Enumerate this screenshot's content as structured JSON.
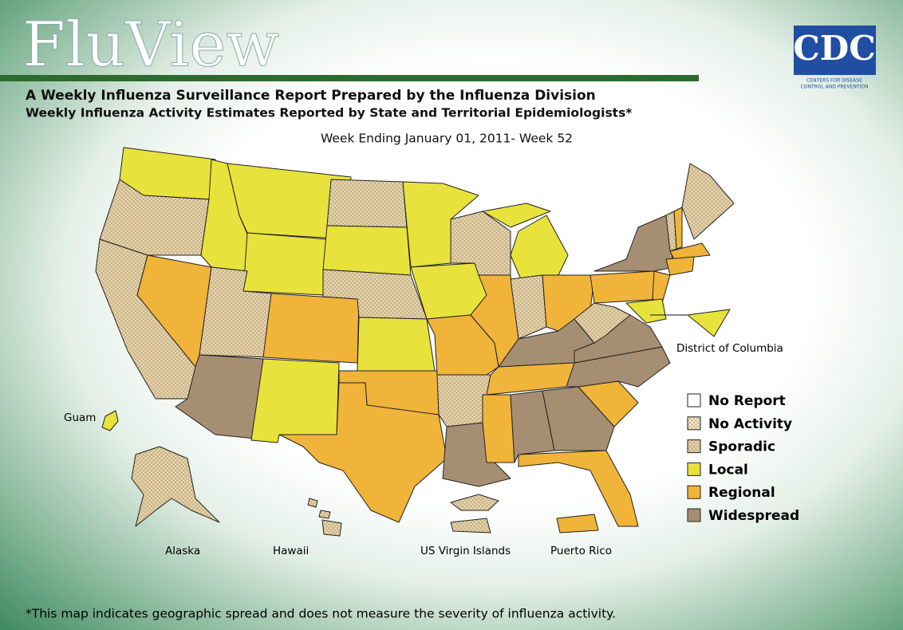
{
  "header": {
    "title": "FluView",
    "subtitle": "A Weekly Influenza Surveillance Report Prepared by the Influenza Division",
    "subtitle2": "Weekly Influenza Activity Estimates Reported by State and Territorial Epidemiologists*",
    "week": "Week Ending January 01, 2011- Week 52"
  },
  "logo": {
    "text": "CDC",
    "tagline_1": "CENTERS FOR DISEASE",
    "tagline_2": "CONTROL AND PREVENTION"
  },
  "legend": [
    {
      "label": "No Report",
      "color": "#ffffff",
      "hatch": false
    },
    {
      "label": "No Activity",
      "color": "#f3ead0",
      "hatch": true
    },
    {
      "label": "Sporadic",
      "color": "#e6d6b0",
      "hatch": true
    },
    {
      "label": "Local",
      "color": "#e8e23c",
      "hatch": false
    },
    {
      "label": "Regional",
      "color": "#f0b43a",
      "hatch": false
    },
    {
      "label": "Widespread",
      "color": "#a68e72",
      "hatch": false
    }
  ],
  "map": {
    "labels": [
      "District of Columbia",
      "Guam",
      "Alaska",
      "Hawaii",
      "US Virgin Islands",
      "Puerto Rico"
    ]
  },
  "footnote": "*This map indicates geographic spread and does not measure the severity of influenza activity."
}
